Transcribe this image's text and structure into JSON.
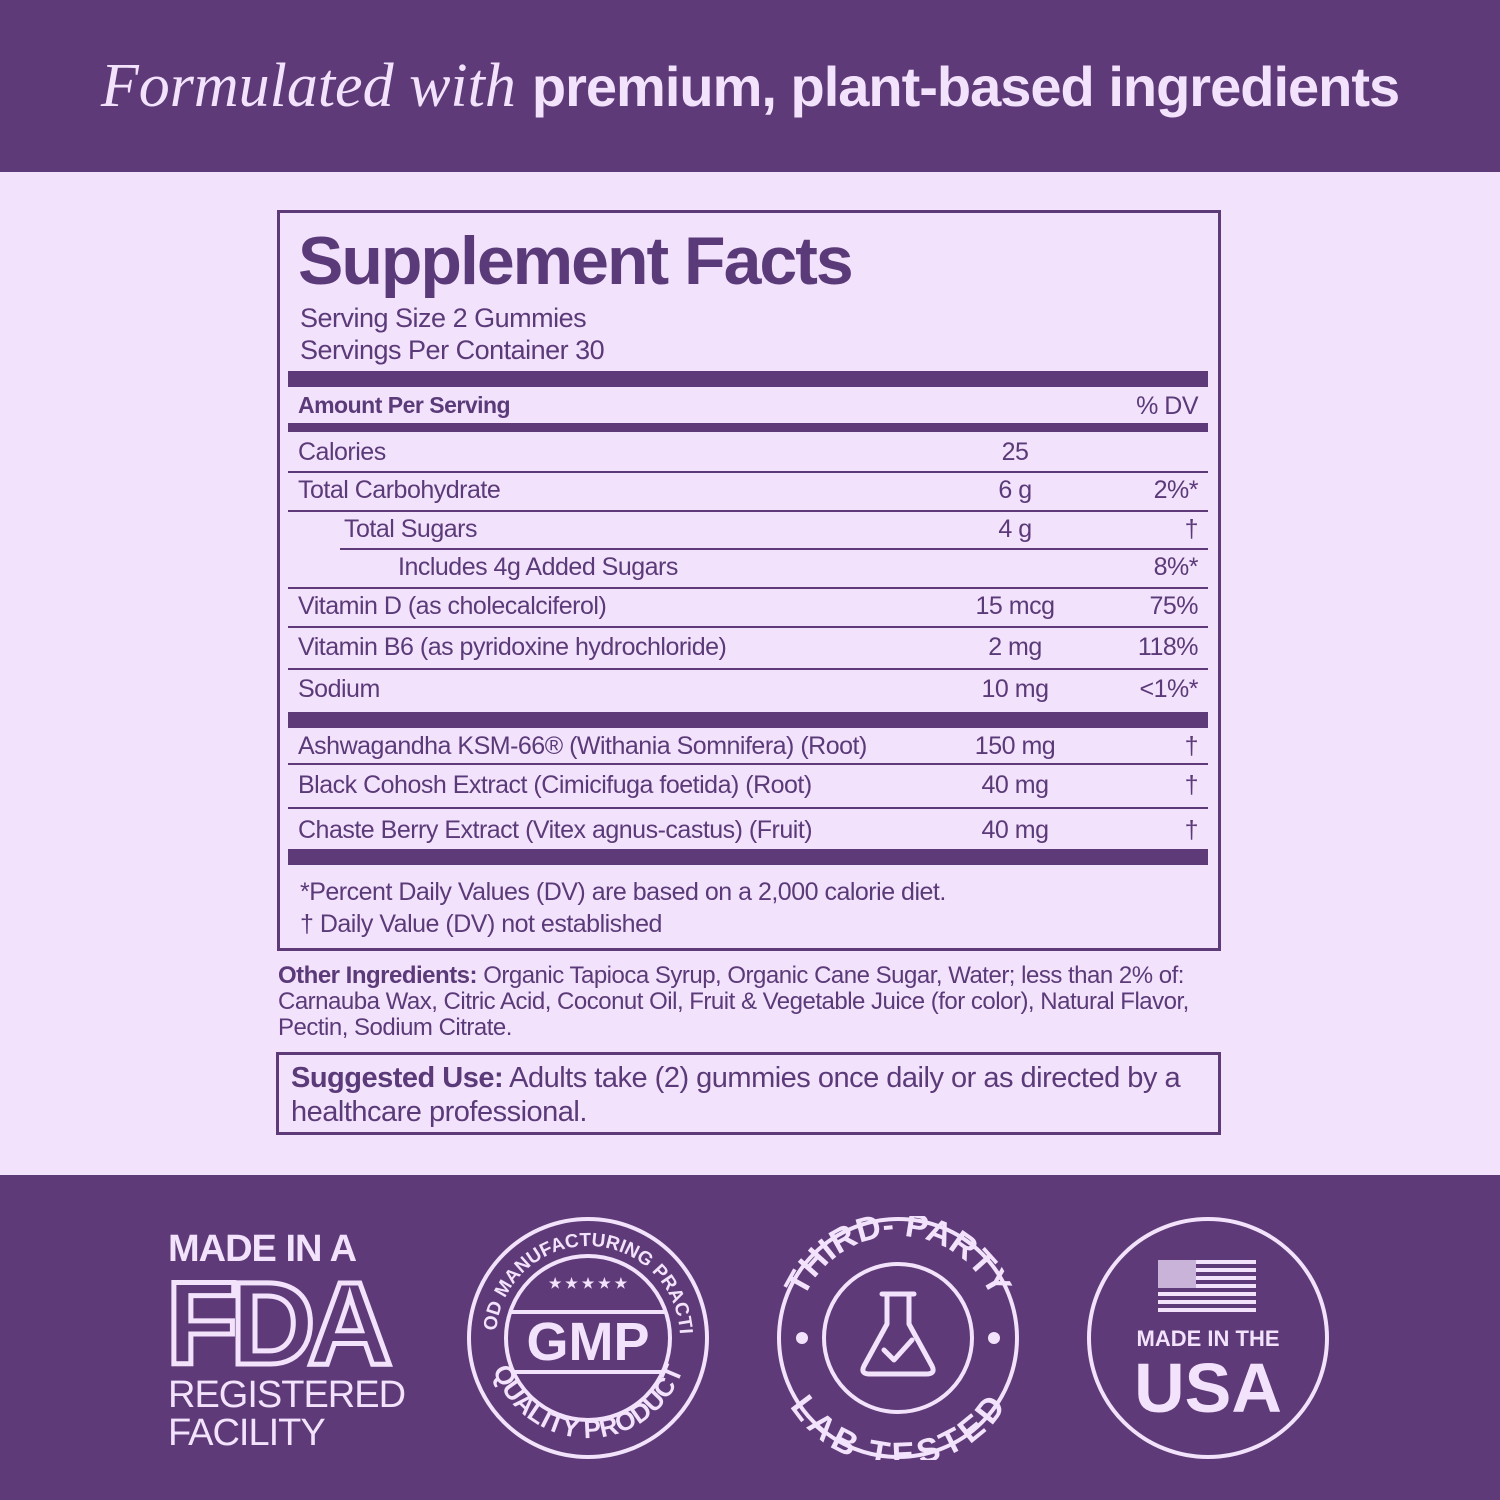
{
  "header": {
    "italic": "Formulated with",
    "bold": "premium, plant-based ingredients"
  },
  "facts": {
    "title": "Supplement Facts",
    "serving_size": "Serving Size 2 Gummies",
    "servings_per_container": "Servings Per Container 30",
    "amount_header": "Amount Per Serving",
    "dv_header": "% DV",
    "rows": [
      {
        "name": "Calories",
        "amount": "25",
        "dv": ""
      },
      {
        "name": "Total Carbohydrate",
        "amount": "6 g",
        "dv": "2%*"
      },
      {
        "name": "Total Sugars",
        "amount": "4 g",
        "dv": "†"
      },
      {
        "name": "Includes 4g Added Sugars",
        "amount": "",
        "dv": "8%*"
      },
      {
        "name": "Vitamin D (as cholecalciferol)",
        "amount": "15 mcg",
        "dv": "75%"
      },
      {
        "name": "Vitamin B6 (as pyridoxine hydrochloride)",
        "amount": "2 mg",
        "dv": "118%"
      },
      {
        "name": "Sodium",
        "amount": "10 mg",
        "dv": "<1%*"
      }
    ],
    "botanicals": [
      {
        "name": "Ashwagandha KSM-66® (Withania Somnifera) (Root)",
        "amount": "150 mg",
        "dv": "†"
      },
      {
        "name": "Black Cohosh Extract (Cimicifuga foetida) (Root)",
        "amount": "40 mg",
        "dv": "†"
      },
      {
        "name": "Chaste Berry Extract (Vitex agnus-castus) (Fruit)",
        "amount": "40 mg",
        "dv": "†"
      }
    ],
    "footnote1": "*Percent Daily Values (DV) are based on a 2,000 calorie diet.",
    "footnote2": "† Daily Value (DV) not established"
  },
  "other_ingredients": {
    "label": "Other Ingredients:",
    "text": " Organic Tapioca Syrup, Organic Cane Sugar, Water; less than 2% of: Carnauba Wax, Citric Acid, Coconut Oil, Fruit & Vegetable Juice (for color), Natural Flavor, Pectin, Sodium Citrate."
  },
  "suggested_use": {
    "label": "Suggested Use:",
    "text": " Adults take (2) gummies once daily or as directed by a healthcare professional."
  },
  "badges": {
    "fda": {
      "top": "MADE IN A",
      "logo": "FDA",
      "line1": "REGISTERED",
      "line2": "FACILITY"
    },
    "gmp": {
      "top": "GOOD MANUFACTURING PRACTICE",
      "center": "GMP",
      "bottom": "QUALITY PRODUCT"
    },
    "lab": {
      "top": "THIRD- PARTY",
      "bottom": "LAB TESTED",
      "icon": "flask-check-icon"
    },
    "usa": {
      "line1": "MADE IN THE",
      "line2": "USA",
      "icon": "us-flag-icon"
    }
  },
  "colors": {
    "primary": "#5e3b78",
    "background": "#f3e2fb"
  }
}
